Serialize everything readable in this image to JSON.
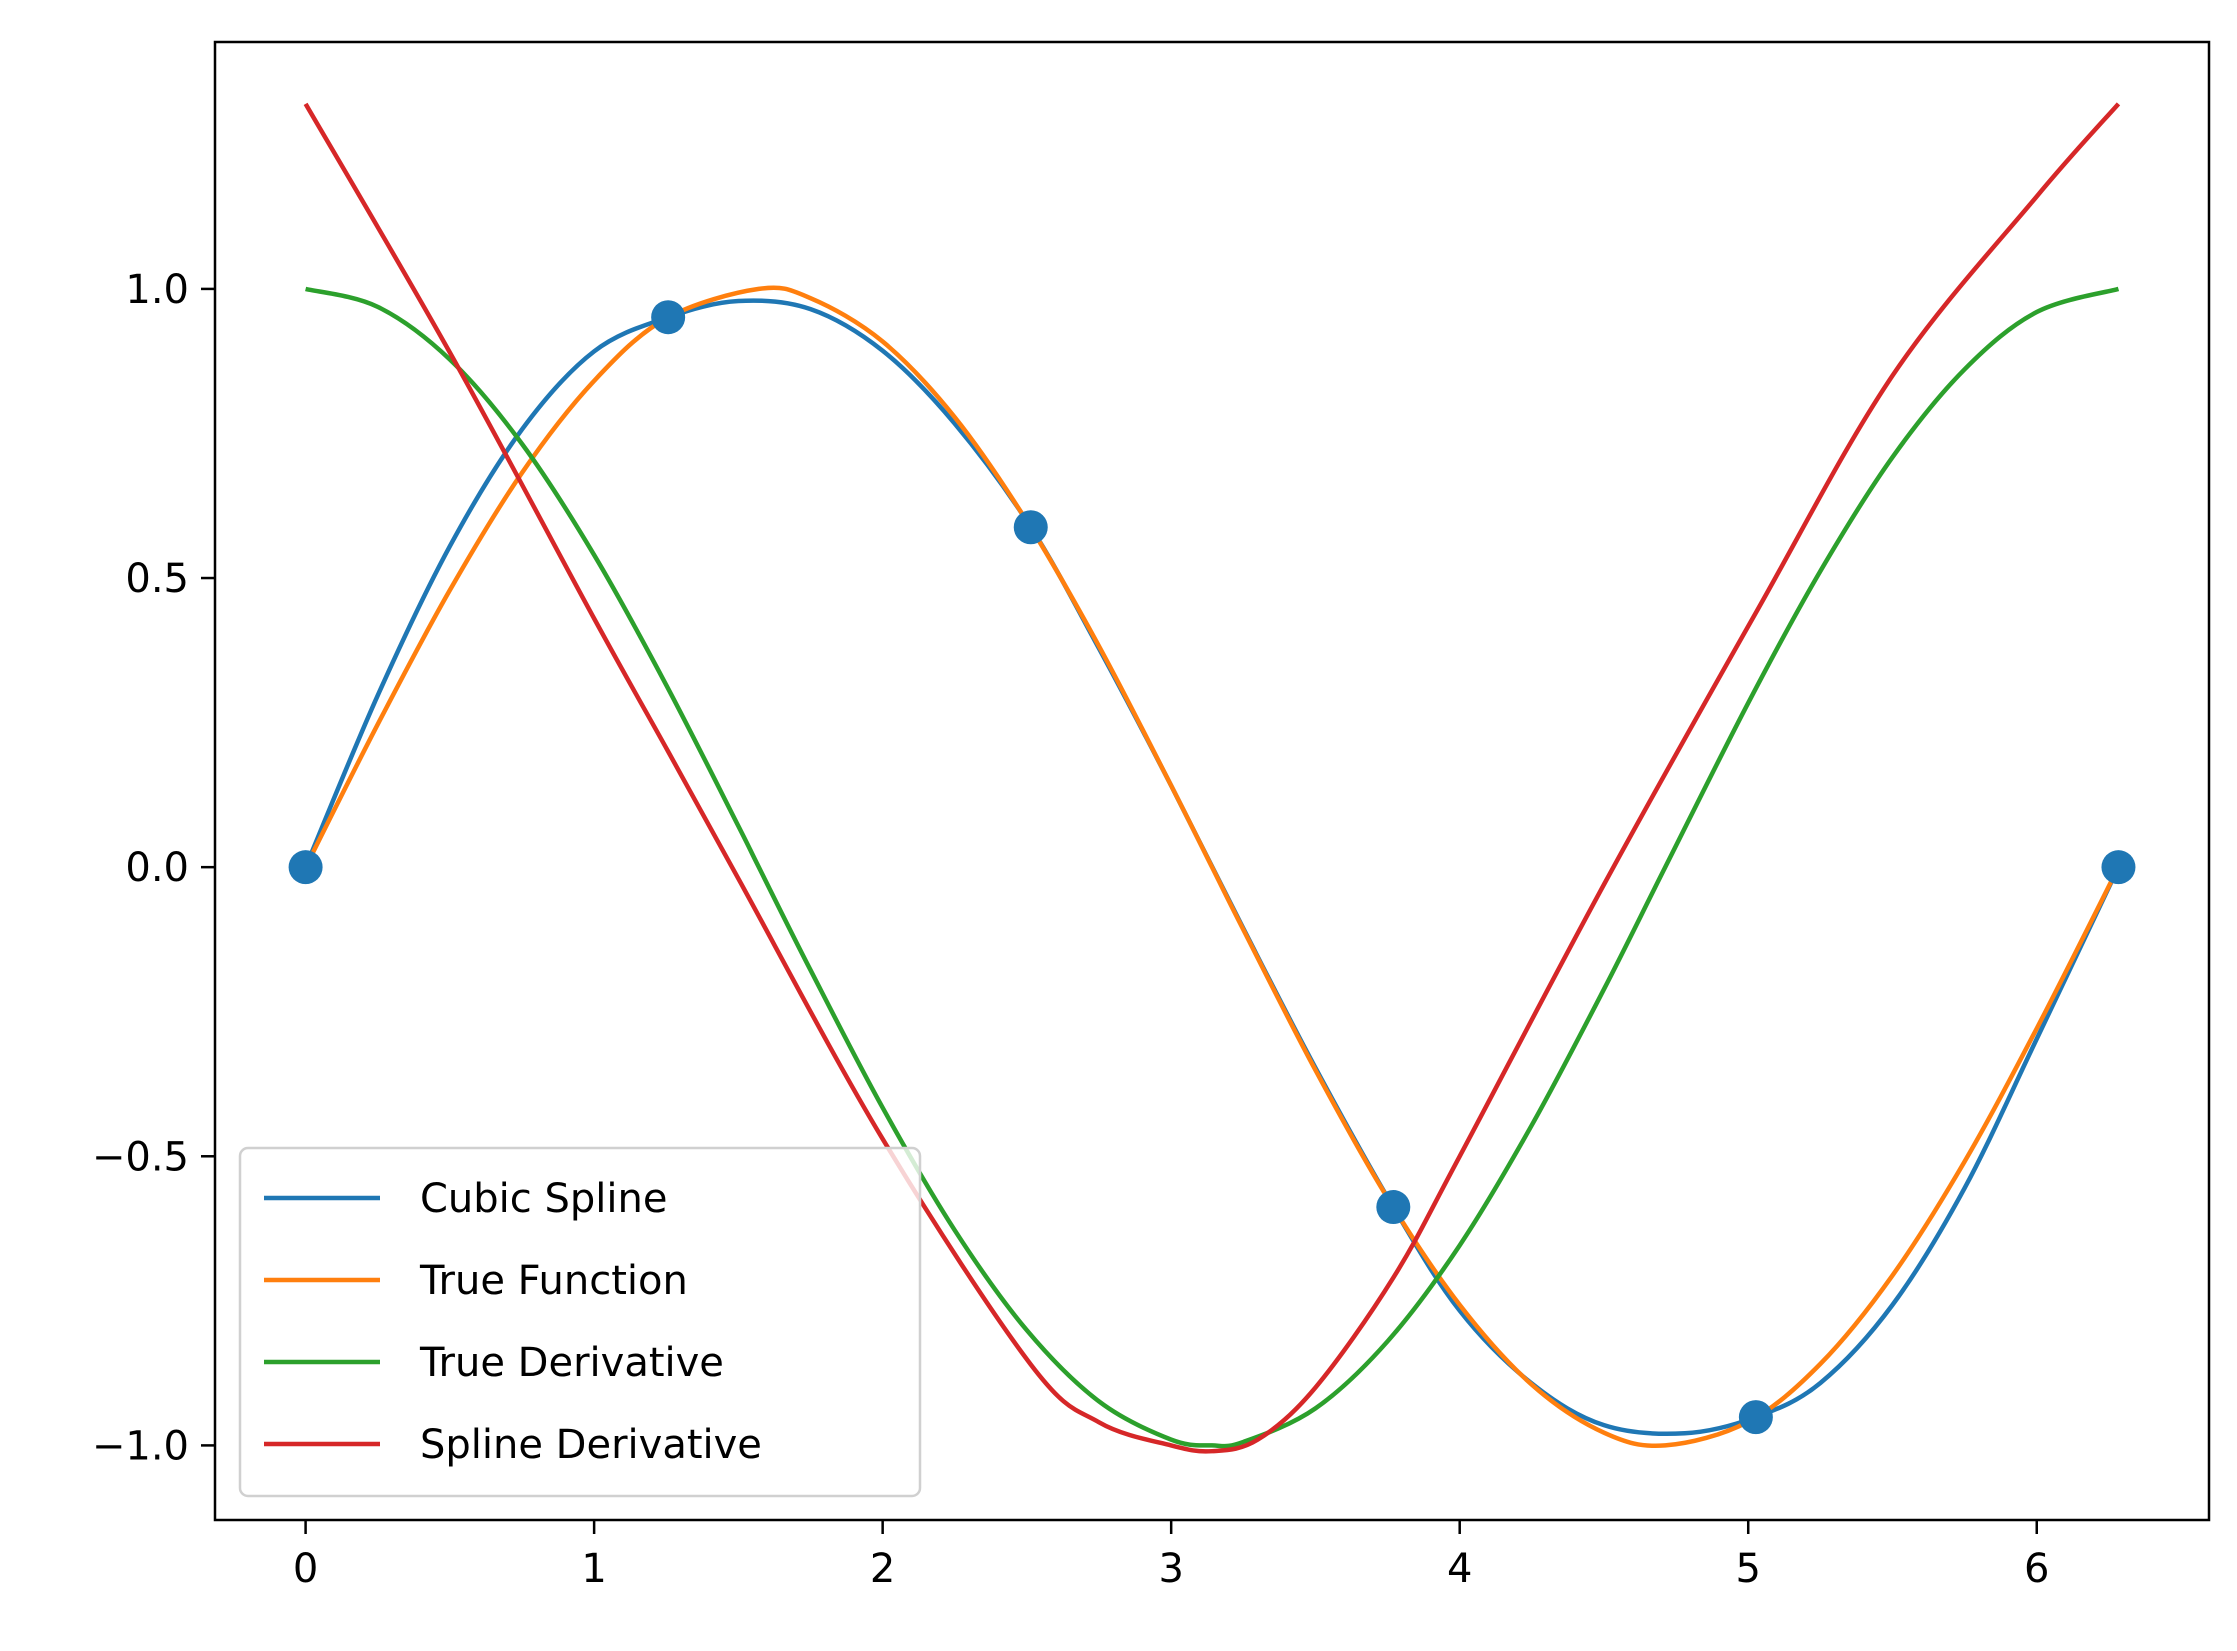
{
  "chart_data": {
    "type": "line",
    "title": "",
    "xlabel": "",
    "ylabel": "",
    "xlim": [
      -0.314,
      6.597
    ],
    "ylim": [
      -1.129,
      1.427
    ],
    "x_ticks": [
      0,
      1,
      2,
      3,
      4,
      5,
      6
    ],
    "y_ticks": [
      -1.0,
      -0.5,
      0.0,
      0.5,
      1.0
    ],
    "x_tick_labels": [
      "0",
      "1",
      "2",
      "3",
      "4",
      "5",
      "6"
    ],
    "y_tick_labels": [
      "−1.0",
      "−0.5",
      "0.0",
      "0.5",
      "1.0"
    ],
    "grid": false,
    "legend_position": "lower-left",
    "knots": {
      "x": [
        0,
        1.2566,
        2.5133,
        3.7699,
        5.0265,
        6.2832
      ],
      "y": [
        0,
        0.9511,
        0.5878,
        -0.5878,
        -0.9511,
        0
      ],
      "color": "#1f77b4"
    },
    "series": [
      {
        "name": "Cubic Spline",
        "color": "#1f77b4",
        "x": [
          0,
          0.25,
          0.5,
          0.75,
          1.0,
          1.2566,
          1.5,
          1.75,
          2.0,
          2.25,
          2.5133,
          2.75,
          3.0,
          3.25,
          3.5,
          3.7699,
          4.0,
          4.25,
          4.5,
          4.78,
          5.0265,
          5.25,
          5.5,
          5.75,
          6.0,
          6.2832
        ],
        "y": [
          0,
          0.297,
          0.555,
          0.757,
          0.892,
          0.951,
          0.979,
          0.965,
          0.893,
          0.767,
          0.588,
          0.378,
          0.141,
          -0.106,
          -0.347,
          -0.588,
          -0.767,
          -0.893,
          -0.965,
          -0.979,
          -0.951,
          -0.892,
          -0.757,
          -0.555,
          -0.297,
          0
        ]
      },
      {
        "name": "True Function",
        "color": "#ff7f0e",
        "x": [
          0,
          0.25,
          0.5,
          0.75,
          1.0,
          1.25,
          1.5708,
          1.75,
          2.0,
          2.25,
          2.5,
          2.75,
          3.0,
          3.1416,
          3.25,
          3.5,
          3.75,
          4.0,
          4.25,
          4.5,
          4.7124,
          5.0,
          5.25,
          5.5,
          5.75,
          6.0,
          6.2832
        ],
        "y": [
          0,
          0.247,
          0.479,
          0.682,
          0.841,
          0.949,
          1.0,
          0.984,
          0.909,
          0.778,
          0.598,
          0.382,
          0.141,
          0,
          -0.108,
          -0.351,
          -0.572,
          -0.757,
          -0.895,
          -0.978,
          -1.0,
          -0.959,
          -0.859,
          -0.706,
          -0.509,
          -0.279,
          0
        ]
      },
      {
        "name": "True Derivative",
        "color": "#2ca02c",
        "x": [
          0,
          0.25,
          0.5,
          0.75,
          1.0,
          1.25,
          1.5,
          1.5708,
          1.75,
          2.0,
          2.25,
          2.5,
          2.75,
          3.0,
          3.1416,
          3.25,
          3.5,
          3.75,
          4.0,
          4.25,
          4.5,
          4.7124,
          5.0,
          5.25,
          5.5,
          5.75,
          6.0,
          6.2832
        ],
        "y": [
          1.0,
          0.969,
          0.878,
          0.732,
          0.54,
          0.315,
          0.071,
          0,
          -0.178,
          -0.416,
          -0.628,
          -0.801,
          -0.924,
          -0.99,
          -1.0,
          -0.994,
          -0.936,
          -0.82,
          -0.654,
          -0.446,
          -0.211,
          0,
          0.284,
          0.512,
          0.709,
          0.861,
          0.96,
          1.0
        ]
      },
      {
        "name": "Spline Derivative",
        "color": "#d62728",
        "x": [
          0,
          0.5,
          1.0,
          1.2566,
          1.5,
          2.0,
          2.5133,
          2.75,
          3.0,
          3.1416,
          3.3,
          3.5,
          3.7699,
          4.0,
          4.5,
          5.0265,
          5.5,
          6.0,
          6.2832
        ],
        "y": [
          1.32,
          0.89,
          0.43,
          0.2,
          -0.02,
          -0.47,
          -0.86,
          -0.96,
          -1.0,
          -1.01,
          -0.99,
          -0.9,
          -0.71,
          -0.5,
          -0.03,
          0.44,
          0.85,
          1.16,
          1.32
        ]
      }
    ]
  }
}
